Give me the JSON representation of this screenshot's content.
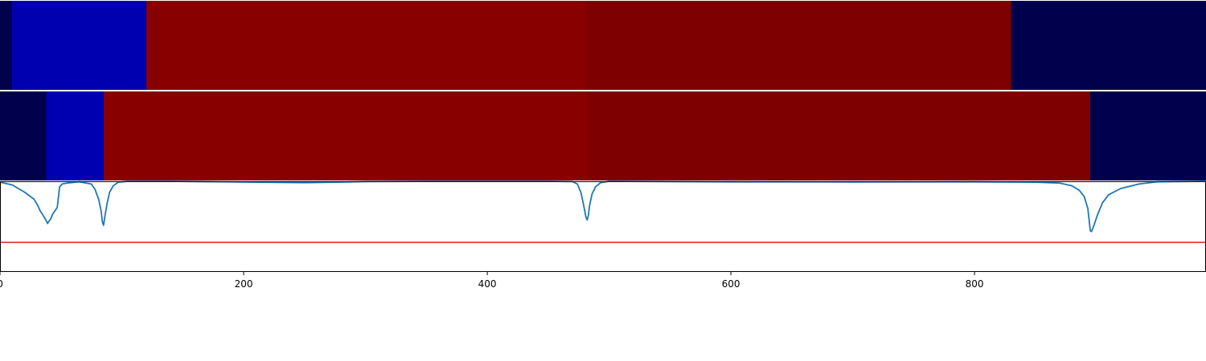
{
  "chart_data": [
    {
      "type": "heatmap",
      "segments": [
        {
          "start": 0,
          "end": 10,
          "color": "#00004c"
        },
        {
          "start": 10,
          "end": 120,
          "color": "#0000b0"
        },
        {
          "start": 120,
          "end": 480,
          "color": "#880000"
        },
        {
          "start": 480,
          "end": 830,
          "color": "#7f0000"
        },
        {
          "start": 830,
          "end": 990,
          "color": "#00004c"
        }
      ]
    },
    {
      "type": "heatmap",
      "segments": [
        {
          "start": 0,
          "end": 38,
          "color": "#00004c"
        },
        {
          "start": 38,
          "end": 85,
          "color": "#0000b0"
        },
        {
          "start": 85,
          "end": 482,
          "color": "#880000"
        },
        {
          "start": 482,
          "end": 895,
          "color": "#7f0000"
        },
        {
          "start": 895,
          "end": 990,
          "color": "#00004c"
        }
      ]
    },
    {
      "type": "line",
      "xlim": [
        0,
        990
      ],
      "ylim": [
        -1.0,
        0.0
      ],
      "threshold": -0.68,
      "threshold_color": "#e41a1c",
      "line_color": "#1f77b4",
      "series": [
        {
          "x": [
            0,
            10,
            20,
            28,
            31,
            33,
            35,
            38,
            39,
            40,
            42,
            43,
            45,
            47,
            49,
            51,
            55,
            65,
            75,
            78,
            81,
            83,
            84,
            85,
            86,
            88,
            90,
            93,
            97,
            105,
            140,
            180,
            250,
            285,
            300,
            350,
            400,
            450,
            470,
            474,
            477,
            479,
            481,
            482,
            483,
            484,
            486,
            489,
            493,
            500,
            550,
            600,
            700,
            800,
            850,
            870,
            880,
            886,
            890,
            893,
            894,
            895,
            896,
            898,
            901,
            905,
            910,
            920,
            935,
            950,
            990
          ],
          "y": [
            -0.01,
            -0.04,
            -0.12,
            -0.2,
            -0.27,
            -0.33,
            -0.37,
            -0.44,
            -0.47,
            -0.45,
            -0.41,
            -0.37,
            -0.33,
            -0.29,
            -0.06,
            -0.03,
            -0.02,
            -0.005,
            -0.03,
            -0.09,
            -0.2,
            -0.33,
            -0.45,
            -0.49,
            -0.4,
            -0.24,
            -0.12,
            -0.05,
            -0.01,
            0,
            0,
            -0.005,
            -0.015,
            -0.008,
            -0.004,
            0,
            0,
            0,
            -0.004,
            -0.03,
            -0.13,
            -0.26,
            -0.4,
            -0.43,
            -0.38,
            -0.27,
            -0.14,
            -0.06,
            -0.015,
            0,
            -0.004,
            -0.006,
            -0.007,
            -0.006,
            -0.01,
            -0.02,
            -0.05,
            -0.1,
            -0.17,
            -0.3,
            -0.42,
            -0.55,
            -0.56,
            -0.49,
            -0.37,
            -0.24,
            -0.15,
            -0.08,
            -0.03,
            -0.005,
            0
          ]
        }
      ],
      "x_ticks": [
        0,
        200,
        400,
        600,
        800
      ],
      "x_tick_labels": [
        "0",
        "200",
        "400",
        "600",
        "800"
      ]
    }
  ]
}
